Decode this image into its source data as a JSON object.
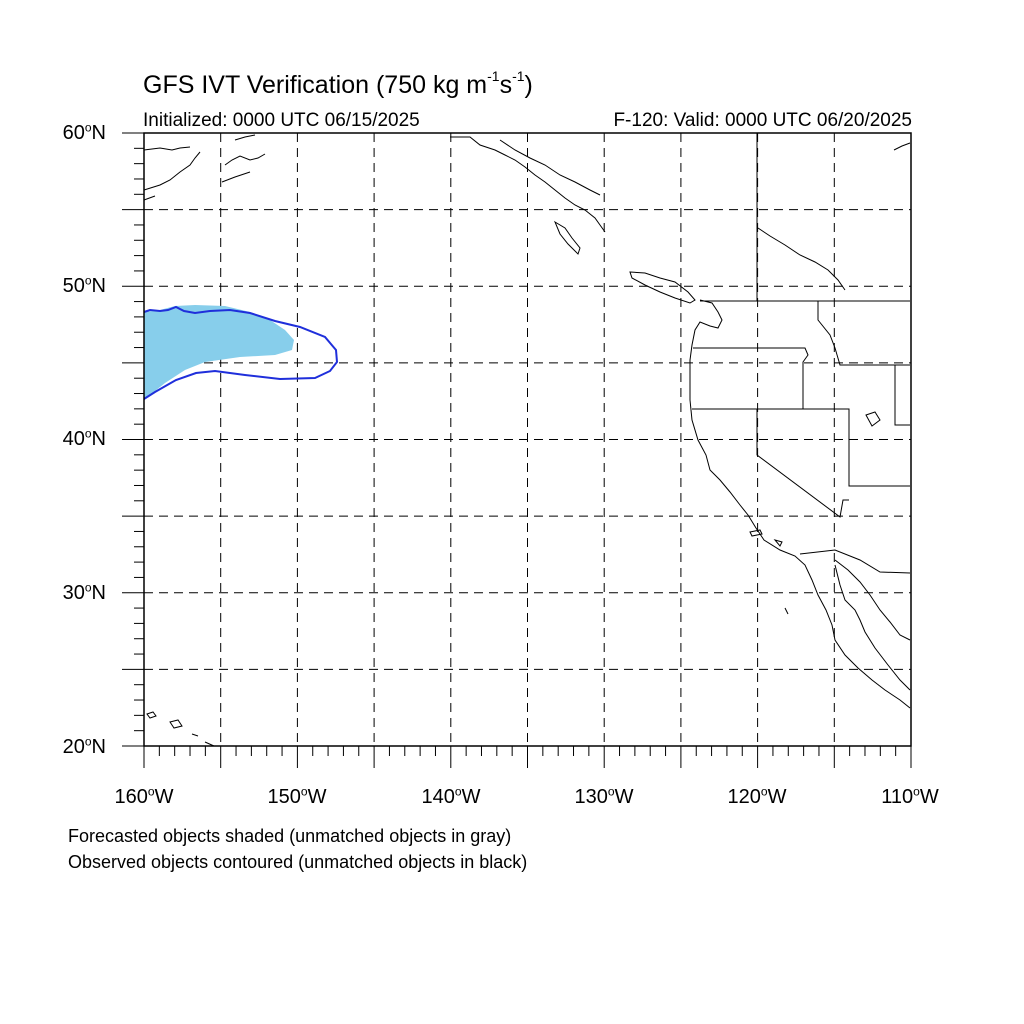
{
  "title": {
    "main": "GFS IVT Verification (750 kg m",
    "sup1": "-1",
    "mid": "s",
    "sup2": "-1",
    "end": ")"
  },
  "initialized": "Initialized: 0000 UTC 06/15/2025",
  "valid": "F-120: Valid: 0000 UTC 06/20/2025",
  "map": {
    "lon_range": [
      -160,
      -110
    ],
    "lat_range": [
      20,
      60
    ],
    "grid": "dashed every 5 degrees",
    "lat_labels": [
      {
        "deg": "60",
        "hemi": "N"
      },
      {
        "deg": "50",
        "hemi": "N"
      },
      {
        "deg": "40",
        "hemi": "N"
      },
      {
        "deg": "30",
        "hemi": "N"
      },
      {
        "deg": "20",
        "hemi": "N"
      }
    ],
    "lon_labels": [
      {
        "deg": "160",
        "hemi": "W"
      },
      {
        "deg": "150",
        "hemi": "W"
      },
      {
        "deg": "140",
        "hemi": "W"
      },
      {
        "deg": "130",
        "hemi": "W"
      },
      {
        "deg": "120",
        "hemi": "W"
      },
      {
        "deg": "110",
        "hemi": "W"
      }
    ],
    "forecast_fill_color": "#87ceeb",
    "observed_contour_color": "#1f2fdb"
  },
  "notes": {
    "line1": "Forecasted objects shaded (unmatched objects in gray)",
    "line2": "Observed objects contoured (unmatched objects in black)"
  }
}
